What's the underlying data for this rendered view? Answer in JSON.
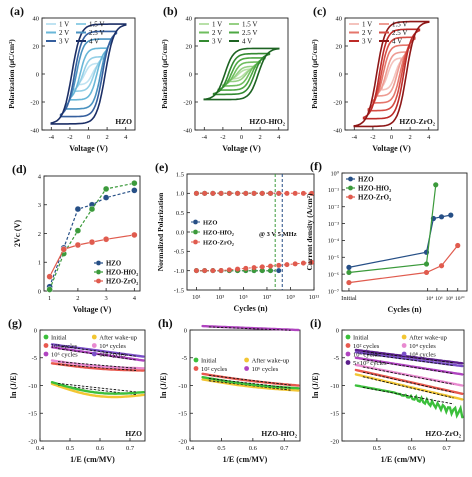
{
  "panels": [
    {
      "letter": "(a)",
      "type": "pe-loop",
      "label": "HZO",
      "ylabel": "Polarization (μC/cm²)",
      "xlabel": "Voltage (V)",
      "xlim": [
        -5,
        5
      ],
      "ylim": [
        -40,
        40
      ],
      "xticks": [
        "-4",
        "-2",
        "0",
        "2",
        "4"
      ],
      "yticks": [
        "-40",
        "-20",
        "0",
        "20",
        "40"
      ],
      "legend": [
        "1 V",
        "1.5 V",
        "2 V",
        "2.5 V",
        "3 V",
        "4 V"
      ],
      "loops": [
        {
          "vmax": 1,
          "pmax": 6,
          "pr": 2,
          "vc": 0.4,
          "color": "#bfe3f2"
        },
        {
          "vmax": 1.5,
          "pmax": 11,
          "pr": 4,
          "vc": 0.6,
          "color": "#93cfe6"
        },
        {
          "vmax": 2,
          "pmax": 17,
          "pr": 7,
          "vc": 0.9,
          "color": "#69b7d8"
        },
        {
          "vmax": 2.5,
          "pmax": 23,
          "pr": 13,
          "vc": 1.3,
          "color": "#4a92c0"
        },
        {
          "vmax": 3,
          "pmax": 29,
          "pr": 19,
          "vc": 1.5,
          "color": "#355f9e"
        },
        {
          "vmax": 4,
          "pmax": 35,
          "pr": 24,
          "vc": 1.8,
          "color": "#1c2f66"
        }
      ]
    },
    {
      "letter": "(b)",
      "type": "pe-loop",
      "label": "HZO-HfO₂",
      "ylabel": "Polarization (μC/cm²)",
      "xlabel": "Voltage (V)",
      "xlim": [
        -5,
        5
      ],
      "ylim": [
        -40,
        40
      ],
      "xticks": [
        "-4",
        "-2",
        "0",
        "2",
        "4"
      ],
      "yticks": [
        "-40",
        "-20",
        "0",
        "20",
        "40"
      ],
      "legend": [
        "1 V",
        "1.5 V",
        "2 V",
        "2.5 V",
        "3 V",
        "4 V"
      ],
      "loops": [
        {
          "vmax": 1,
          "pmax": 3,
          "pr": 1,
          "vc": 0.3,
          "color": "#b8e0a8"
        },
        {
          "vmax": 1.5,
          "pmax": 5,
          "pr": 2,
          "vc": 0.5,
          "color": "#96d084"
        },
        {
          "vmax": 2,
          "pmax": 8,
          "pr": 4,
          "vc": 0.8,
          "color": "#6fbe5e"
        },
        {
          "vmax": 2.5,
          "pmax": 11,
          "pr": 7,
          "vc": 1.1,
          "color": "#4ea843"
        },
        {
          "vmax": 3,
          "pmax": 14,
          "pr": 9,
          "vc": 1.4,
          "color": "#338a31"
        },
        {
          "vmax": 4,
          "pmax": 18,
          "pr": 12,
          "vc": 1.8,
          "color": "#1d6322"
        }
      ]
    },
    {
      "letter": "(c)",
      "type": "pe-loop",
      "label": "HZO-ZrO₂",
      "ylabel": "Polarization (μC/cm²)",
      "xlabel": "Voltage (V)",
      "xlim": [
        -5,
        5
      ],
      "ylim": [
        -40,
        40
      ],
      "xticks": [
        "-4",
        "-2",
        "0",
        "2",
        "4"
      ],
      "yticks": [
        "-40",
        "-20",
        "0",
        "20",
        "40"
      ],
      "legend": [
        "1 V",
        "1.5 V",
        "2 V",
        "2.5 V",
        "3 V",
        "4 V"
      ],
      "loops": [
        {
          "vmax": 1,
          "pmax": 9,
          "pr": 3,
          "vc": 0.4,
          "color": "#f4c3bd"
        },
        {
          "vmax": 1.5,
          "pmax": 14,
          "pr": 6,
          "vc": 0.6,
          "color": "#ee9c93"
        },
        {
          "vmax": 2,
          "pmax": 19,
          "pr": 9,
          "vc": 0.9,
          "color": "#e5766b"
        },
        {
          "vmax": 2.5,
          "pmax": 25,
          "pr": 14,
          "vc": 1.1,
          "color": "#d54d44"
        },
        {
          "vmax": 3,
          "pmax": 31,
          "pr": 18,
          "vc": 1.3,
          "color": "#bd2b28"
        },
        {
          "vmax": 4,
          "pmax": 37,
          "pr": 22,
          "vc": 1.6,
          "color": "#8e1717"
        }
      ]
    },
    {
      "letter": "(d)",
      "type": "line",
      "ylabel": "2Vᴄ (V)",
      "xlabel": "Voltage (V)",
      "xlim": [
        0.8,
        4.2
      ],
      "ylim": [
        0,
        4
      ],
      "xticks": [
        "1",
        "2",
        "3",
        "4"
      ],
      "yticks": [
        "0",
        "1",
        "2",
        "3",
        "4"
      ],
      "x": [
        1,
        1.5,
        2,
        2.5,
        3,
        4
      ],
      "series": [
        {
          "name": "HZO",
          "values": [
            0.15,
            1.5,
            2.85,
            3.0,
            3.25,
            3.5
          ],
          "color": "#264f86",
          "dash": true
        },
        {
          "name": "HZO-HfO₂",
          "values": [
            0.05,
            1.3,
            2.1,
            2.85,
            3.55,
            3.75
          ],
          "color": "#3b9a3b",
          "dash": true
        },
        {
          "name": "HZO-ZrO₂",
          "values": [
            0.5,
            1.45,
            1.6,
            1.7,
            1.8,
            1.95
          ],
          "color": "#e05b4e",
          "dash": false
        }
      ]
    },
    {
      "letter": "(e)",
      "type": "fatigue",
      "ylabel": "Normalized Polarization",
      "xlabel": "Cycles (n)",
      "xlim": [
        0.2,
        11
      ],
      "ylim": [
        -1.5,
        1.5
      ],
      "xtickvals": [
        1,
        3,
        5,
        7,
        9,
        11
      ],
      "xticks": [
        "10¹",
        "10³",
        "10⁵",
        "10⁷",
        "10⁹",
        "10¹¹"
      ],
      "yticks": [
        "-1.5",
        "-1.0",
        "-0.5",
        "0.0",
        "0.5",
        "1.0",
        "1.5"
      ],
      "annotation": "@ 3 V  5 MHz",
      "series": [
        {
          "name": "HZO",
          "color": "#264f86",
          "end": 8.3,
          "pos": [
            1.0,
            1.0
          ],
          "neg": [
            -1.0,
            -1.0
          ]
        },
        {
          "name": "HZO-HfO₂",
          "color": "#3b9a3b",
          "end": 7.7,
          "pos": [
            1.0,
            1.0
          ],
          "neg": [
            -1.0,
            -1.0
          ]
        },
        {
          "name": "HZO-ZrO₂",
          "color": "#e05b4e",
          "end": 11.0,
          "pos": [
            1.0,
            1.0
          ],
          "neg": [
            -1.0,
            -0.78
          ]
        }
      ]
    },
    {
      "letter": "(f)",
      "type": "current",
      "ylabel": "Current density (A/cm²)",
      "xlabel": "Cycles (n)",
      "ylim": [
        -7,
        0
      ],
      "ytickvals": [
        -7,
        -6,
        -5,
        -4,
        -3,
        -2,
        -1,
        0
      ],
      "yticks": [
        "10⁻⁷",
        "10⁻⁶",
        "10⁻⁵",
        "10⁻⁴",
        "10⁻³",
        "10⁻²",
        "10⁻¹",
        "10⁰"
      ],
      "xticks": [
        "Initial",
        "10⁴",
        "10⁶",
        "10⁸",
        "10¹⁰"
      ],
      "series": [
        {
          "name": "HZO",
          "color": "#264f86",
          "points": [
            [
              0.3,
              -5.6
            ],
            [
              3.65,
              -4.7
            ],
            [
              3.95,
              -2.7
            ],
            [
              4.3,
              -2.6
            ],
            [
              4.7,
              -2.5
            ]
          ]
        },
        {
          "name": "HZO-HfO₂",
          "color": "#3b9a3b",
          "points": [
            [
              0.3,
              -5.9
            ],
            [
              3.65,
              -5.4
            ],
            [
              4.05,
              -0.7
            ]
          ]
        },
        {
          "name": "HZO-ZrO₂",
          "color": "#e05b4e",
          "points": [
            [
              0.3,
              -6.5
            ],
            [
              3.65,
              -5.9
            ],
            [
              4.3,
              -5.5
            ],
            [
              5.0,
              -4.3
            ]
          ]
        }
      ]
    },
    {
      "letter": "(g)",
      "type": "pf",
      "ylabel": "ln (J/E)",
      "xlabel": "1/E (cm/MV)",
      "label": "HZO",
      "xlim": [
        0.4,
        0.75
      ],
      "ylim": [
        -20,
        0
      ],
      "xtickvals": [
        0.4,
        0.5,
        0.6,
        0.7
      ],
      "xticks": [
        "0.4",
        "0.5",
        "0.6",
        "0.7"
      ],
      "ytickvals": [
        -20,
        -15,
        -10,
        -5,
        0
      ],
      "yticks": [
        "-20",
        "-15",
        "-10",
        "-5",
        "0"
      ],
      "legend": [
        {
          "name": "Initial",
          "color": "#3bbf3b"
        },
        {
          "name": "After wake-up",
          "color": "#f2c633"
        },
        {
          "name": "10² cycles",
          "color": "#e8584e"
        },
        {
          "name": "10⁴ cycles",
          "color": "#e88ad0"
        },
        {
          "name": "10⁶ cycles",
          "color": "#b044c0"
        },
        {
          "name": "10⁸ cycles",
          "color": "#7a4ec8"
        }
      ],
      "traces": [
        {
          "color": "#f2c633",
          "y0": -9.7,
          "y1": -11.7,
          "bow": 1.2
        },
        {
          "color": "#3bbf3b",
          "y0": -9.4,
          "y1": -11.2,
          "bow": 1.0
        },
        {
          "color": "#e8584e",
          "y0": -6.0,
          "y1": -7.3,
          "bow": 0.3
        },
        {
          "color": "#e88ad0",
          "y0": -5.5,
          "y1": -6.9,
          "bow": 0.3
        },
        {
          "color": "#b044c0",
          "y0": -3.1,
          "y1": -5.5,
          "bow": 0.0
        },
        {
          "color": "#7a4ec8",
          "y0": -2.6,
          "y1": -4.8,
          "bow": 0.0
        }
      ]
    },
    {
      "letter": "(h)",
      "type": "pf",
      "ylabel": "ln (J/E)",
      "xlabel": "1/E (cm/MV)",
      "label": "HZO-HfO₂",
      "xlim": [
        0.4,
        0.75
      ],
      "ylim": [
        -20,
        0
      ],
      "xtickvals": [
        0.4,
        0.5,
        0.6,
        0.7
      ],
      "xticks": [
        "0.4",
        "0.5",
        "0.6",
        "0.7"
      ],
      "ytickvals": [
        -20,
        -15,
        -10,
        -5,
        0
      ],
      "yticks": [
        "-20",
        "-15",
        "-10",
        "-5",
        "0"
      ],
      "legend": [
        {
          "name": "Initial",
          "color": "#3bbf3b"
        },
        {
          "name": "After wake-up",
          "color": "#f2c633"
        },
        {
          "name": "10² cycles",
          "color": "#e8584e"
        },
        {
          "name": "10⁶ cycles",
          "color": "#b044c0"
        }
      ],
      "traces": [
        {
          "color": "#b044c0",
          "y0": 0.7,
          "y1": 0.0,
          "bow": 0.0
        },
        {
          "color": "#f2c633",
          "y0": -8.9,
          "y1": -10.9,
          "bow": 0.3
        },
        {
          "color": "#3bbf3b",
          "y0": -8.5,
          "y1": -10.5,
          "bow": 0.3
        },
        {
          "color": "#e8584e",
          "y0": -7.9,
          "y1": -10.0,
          "bow": 0.2
        }
      ]
    },
    {
      "letter": "(i)",
      "type": "pf",
      "ylabel": "ln (J/E)",
      "xlabel": "1/E (cm/MV)",
      "label": "HZO-ZrO₂",
      "xlim": [
        0.4,
        0.75
      ],
      "ylim": [
        -20,
        0
      ],
      "xtickvals": [
        0.5,
        0.6,
        0.7
      ],
      "xticks": [
        "0.5",
        "0.6",
        "0.7"
      ],
      "ytickvals": [
        -20,
        -15,
        -10,
        -5,
        0
      ],
      "yticks": [
        "-20",
        "-15",
        "-10",
        "-5",
        "0"
      ],
      "legend": [
        {
          "name": "Initial",
          "color": "#3bbf3b"
        },
        {
          "name": "After wake-up",
          "color": "#f2c633"
        },
        {
          "name": "10² cycles",
          "color": "#e8584e"
        },
        {
          "name": "10⁴ cycles",
          "color": "#e88ad0"
        },
        {
          "name": "10⁶ cycles",
          "color": "#b044c0"
        },
        {
          "name": "10⁸ cycles",
          "color": "#7a4ec8"
        },
        {
          "name": "5×10⁹ cycles",
          "color": "#5c1f8c"
        }
      ],
      "traces": [
        {
          "color": "#3bbf3b",
          "y0": -10.0,
          "y1": -13.5,
          "bow": 0.0,
          "noisy": true
        },
        {
          "color": "#f2c633",
          "y0": -8.0,
          "y1": -12.5,
          "bow": 0.0
        },
        {
          "color": "#e8584e",
          "y0": -7.2,
          "y1": -11.5,
          "bow": 0.0
        },
        {
          "color": "#e88ad0",
          "y0": -6.3,
          "y1": -10.0,
          "bow": 0.0
        },
        {
          "color": "#b044c0",
          "y0": -5.0,
          "y1": -8.0,
          "bow": 0.0
        },
        {
          "color": "#7a4ec8",
          "y0": -4.0,
          "y1": -6.5,
          "bow": 0.0
        },
        {
          "color": "#5c1f8c",
          "y0": -3.6,
          "y1": -6.0,
          "bow": 0.0
        }
      ]
    }
  ]
}
